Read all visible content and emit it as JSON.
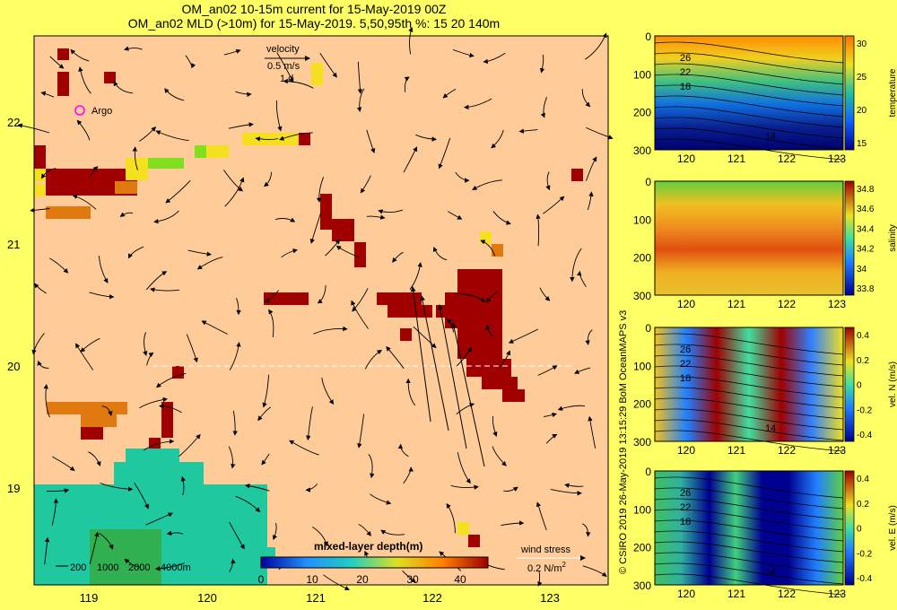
{
  "titles": {
    "line1": "OM_an02 10-15m current for 15-May-2019 00Z",
    "line2": "OM_an02 MLD (>10m) for 15-May-2019. 5,50,95th %: 15   20  140m"
  },
  "map": {
    "lat_ticks": [
      "22",
      "21",
      "20",
      "19"
    ],
    "lon_ticks": [
      "119",
      "120",
      "121",
      "122",
      "123"
    ],
    "velocity_key": {
      "label": "velocity",
      "speed": "0.5 m/s",
      "duration": "1 d"
    },
    "argo_label": "Argo",
    "depth_key": {
      "values": [
        "200",
        "1000",
        "2000",
        "4000m"
      ]
    },
    "mld_colorbar": {
      "title": "mixed-layer depth(m)",
      "ticks": [
        "0",
        "10",
        "20",
        "30",
        "40"
      ]
    },
    "wind_key": {
      "label": "wind stress",
      "value": "0.2 N/m",
      "sup": "2"
    }
  },
  "panels": [
    {
      "name": "temperature",
      "y_ticks": [
        "0",
        "100",
        "200",
        "300"
      ],
      "x_ticks": [
        "120",
        "121",
        "122",
        "123"
      ],
      "cbar_ticks": [
        "30",
        "25",
        "20",
        "15"
      ],
      "cbar_label": "temperature",
      "contour_labels": [
        "26",
        "22",
        "18",
        "14"
      ]
    },
    {
      "name": "salinity",
      "y_ticks": [
        "0",
        "100",
        "200",
        "300"
      ],
      "x_ticks": [
        "120",
        "121",
        "122",
        "123"
      ],
      "cbar_ticks": [
        "34.8",
        "34.6",
        "34.4",
        "34.2",
        "34",
        "33.8"
      ],
      "cbar_label": "salinity",
      "contour_labels": []
    },
    {
      "name": "vel-n",
      "y_ticks": [
        "0",
        "100",
        "200",
        "300"
      ],
      "x_ticks": [
        "120",
        "121",
        "122",
        "123"
      ],
      "cbar_ticks": [
        "0.4",
        "0.2",
        "0",
        "-0.2",
        "-0.4"
      ],
      "cbar_label": "vel. N (m/s)",
      "contour_labels": [
        "26",
        "22",
        "18",
        "14"
      ]
    },
    {
      "name": "vel-e",
      "y_ticks": [
        "0",
        "100",
        "200",
        "300"
      ],
      "x_ticks": [
        "120",
        "121",
        "122",
        "123"
      ],
      "cbar_ticks": [
        "0.4",
        "0.2",
        "0",
        "-0.2",
        "-0.4"
      ],
      "cbar_label": "vel. E (m/s)",
      "contour_labels": [
        "26",
        "22",
        "18",
        "14"
      ]
    }
  ],
  "side_caption": "© CSIRO 2019   26-May-2019 13:15:29 BoM OceanMAPS v3"
}
